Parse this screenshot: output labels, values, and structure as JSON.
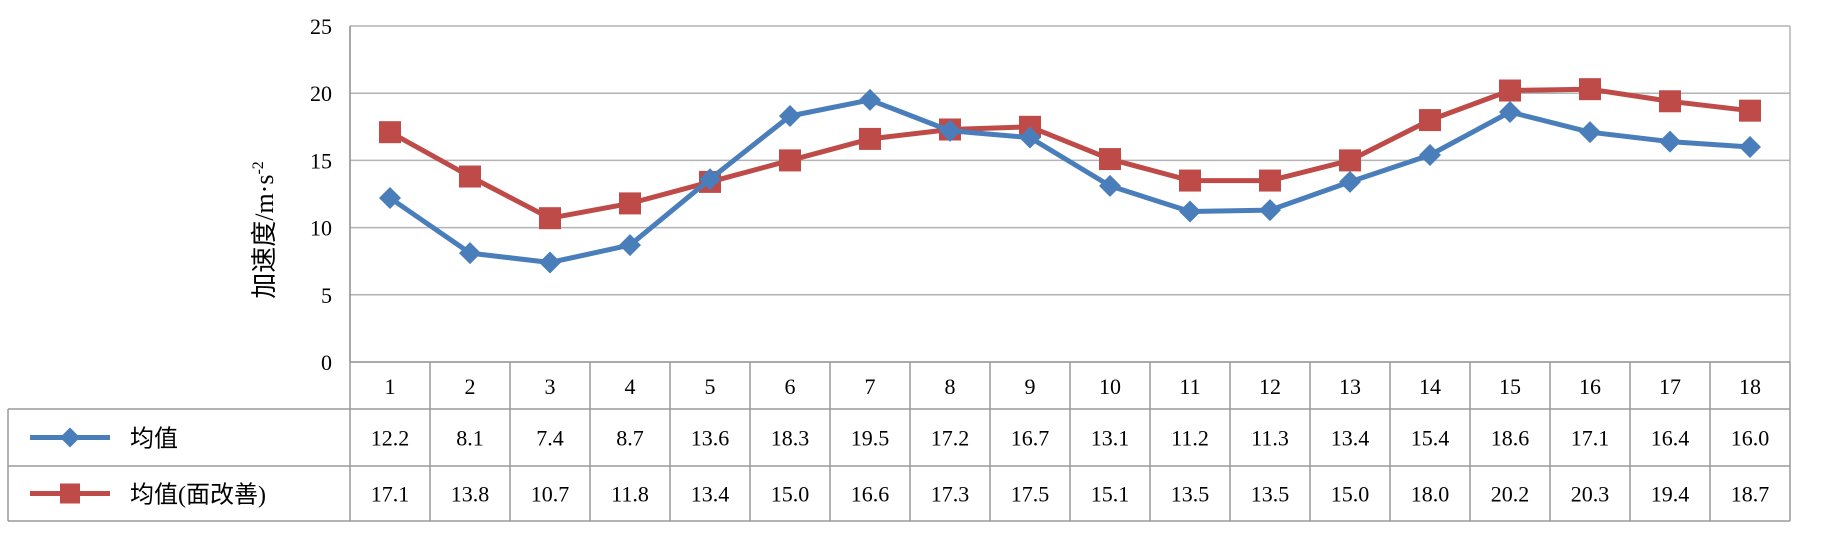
{
  "chart_data": {
    "type": "line",
    "title": "",
    "ylabel": "加速度/m·s",
    "ylabel_superscript": "-2",
    "ylim": [
      0,
      25
    ],
    "yticks": [
      0,
      5,
      10,
      15,
      20,
      25
    ],
    "grid": true,
    "legend_placement": "data-table-left",
    "categories": [
      "1",
      "2",
      "3",
      "4",
      "5",
      "6",
      "7",
      "8",
      "9",
      "10",
      "11",
      "12",
      "13",
      "14",
      "15",
      "16",
      "17",
      "18"
    ],
    "series": [
      {
        "name": "均值",
        "color": "#4a7ebb",
        "marker": "diamond",
        "values": [
          12.2,
          8.1,
          7.4,
          8.7,
          13.6,
          18.3,
          19.5,
          17.2,
          16.7,
          13.1,
          11.2,
          11.3,
          13.4,
          15.4,
          18.6,
          17.1,
          16.4,
          16.0
        ],
        "labels": [
          "12.2",
          "8.1",
          "7.4",
          "8.7",
          "13.6",
          "18.3",
          "19.5",
          "17.2",
          "16.7",
          "13.1",
          "11.2",
          "11.3",
          "13.4",
          "15.4",
          "18.6",
          "17.1",
          "16.4",
          "16.0"
        ]
      },
      {
        "name": "均值(面改善)",
        "color": "#be4b48",
        "marker": "square",
        "values": [
          17.1,
          13.8,
          10.7,
          11.8,
          13.4,
          15.0,
          16.6,
          17.3,
          17.5,
          15.1,
          13.5,
          13.5,
          15.0,
          18.0,
          20.2,
          20.3,
          19.4,
          18.7
        ],
        "labels": [
          "17.1",
          "13.8",
          "10.7",
          "11.8",
          "13.4",
          "15.0",
          "16.6",
          "17.3",
          "17.5",
          "15.1",
          "13.5",
          "13.5",
          "15.0",
          "18.0",
          "20.2",
          "20.3",
          "19.4",
          "18.7"
        ]
      }
    ]
  },
  "colors": {
    "grid": "#b3b3b3",
    "axis": "#8c8c8c",
    "table_border": "#9a9a9a"
  }
}
